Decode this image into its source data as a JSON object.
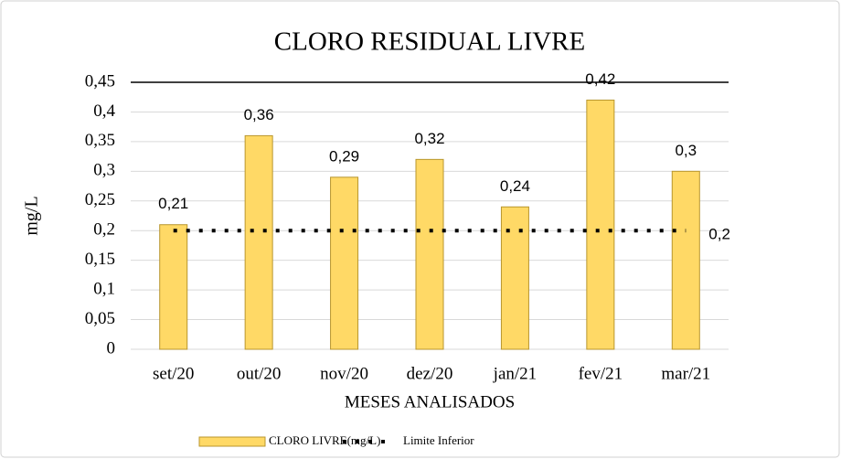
{
  "chart_data": {
    "type": "bar",
    "title": "CLORO RESIDUAL LIVRE",
    "x_label": "MESES ANALISADOS",
    "y_label": "mg/L",
    "categories": [
      "set/20",
      "out/20",
      "nov/20",
      "dez/20",
      "jan/21",
      "fev/21",
      "mar/21"
    ],
    "series": [
      {
        "name": "CLORO LIVRE(mg/L)",
        "type": "bar",
        "color": "#ffd966",
        "values": [
          0.21,
          0.36,
          0.29,
          0.32,
          0.24,
          0.42,
          0.3
        ],
        "value_labels": [
          "0,21",
          "0,36",
          "0,29",
          "0,32",
          "0,24",
          "0,42",
          "0,3"
        ]
      },
      {
        "name": "Limite Inferior",
        "type": "line",
        "color": "#000000",
        "values": [
          0.2,
          0.2,
          0.2,
          0.2,
          0.2,
          0.2,
          0.2
        ],
        "value_labels": [
          null,
          null,
          null,
          null,
          null,
          null,
          "0,2"
        ]
      }
    ],
    "ylim": [
      0,
      0.45
    ],
    "yticks": [
      0,
      {
        "value": 0.05,
        "label": "0,05"
      },
      {
        "value": 0.1,
        "label": "0,1"
      },
      {
        "value": 0.15,
        "label": "0,15"
      },
      {
        "value": 0.2,
        "label": "0,2"
      },
      {
        "value": 0.25,
        "label": "0,25"
      },
      {
        "value": 0.3,
        "label": "0,3"
      },
      {
        "value": 0.35,
        "label": "0,35"
      },
      {
        "value": 0.4,
        "label": "0,4"
      },
      {
        "value": 0.45,
        "label": "0,45"
      }
    ],
    "grid": true,
    "legend": "bottom"
  }
}
